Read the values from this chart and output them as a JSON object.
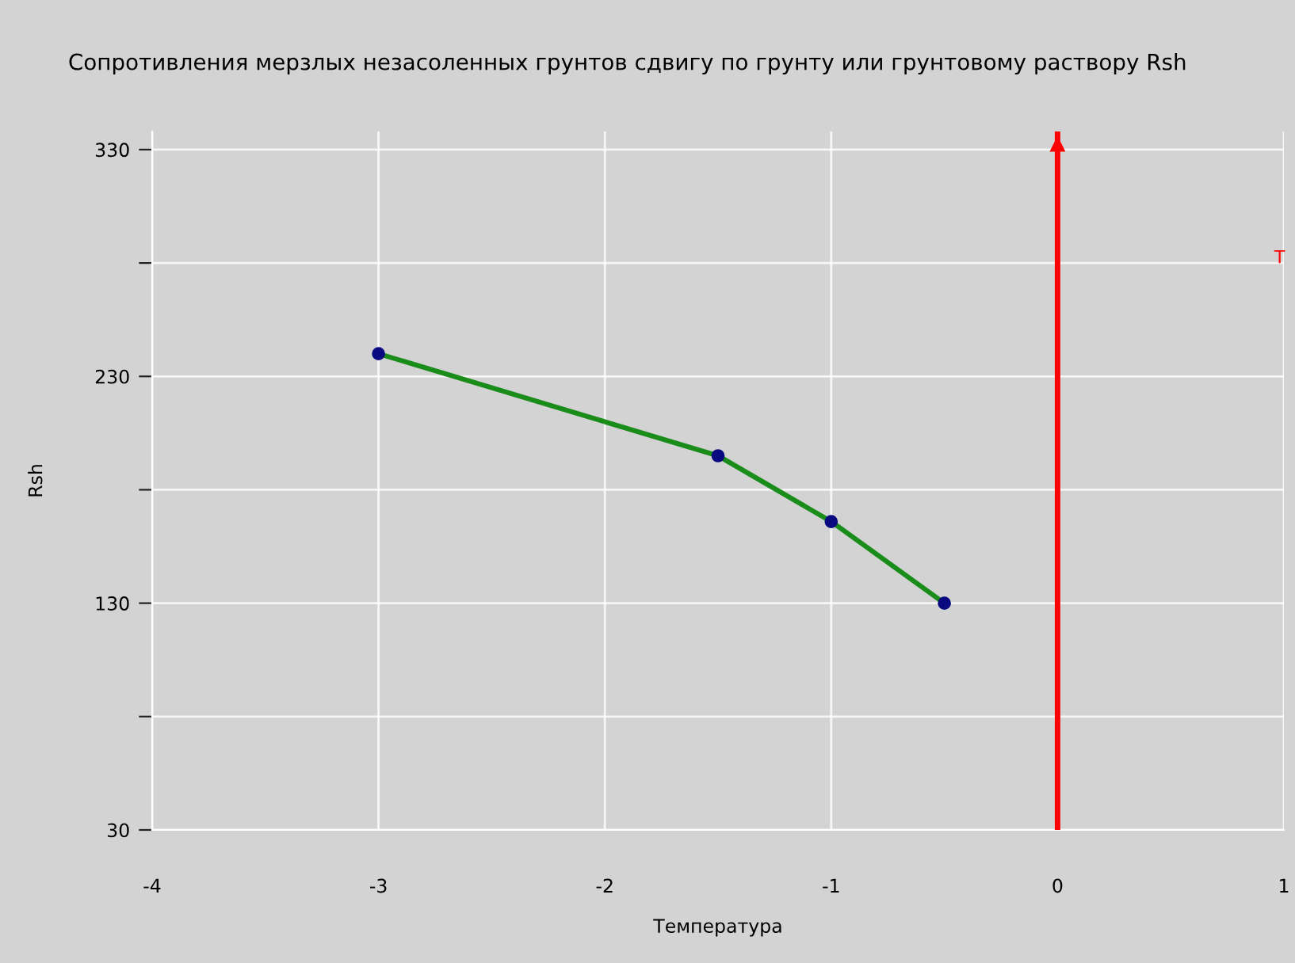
{
  "chart_data": {
    "type": "line",
    "title": "Сопротивления мерзлых незасоленных грунтов сдвигу по грунту или грунтовому раствору Rsh",
    "xlabel": "Температура",
    "ylabel": "Rsh",
    "x": [
      -3,
      -1.5,
      -1,
      -0.5
    ],
    "series": [
      {
        "color": "#1a8c1a",
        "values": [
          240,
          195,
          166,
          130
        ]
      }
    ],
    "marker": "circle",
    "xlim": [
      -4,
      1
    ],
    "xticks": [
      -4,
      -3,
      -2,
      -1,
      0,
      1
    ],
    "ylim": [
      30,
      338
    ],
    "yticks": [
      30,
      {
        "value": 80,
        "label": null
      },
      130,
      {
        "value": 180,
        "label": null
      },
      230,
      {
        "value": 280,
        "label": null
      },
      330
    ],
    "grid": true,
    "ref_lines": [
      {
        "axis": "x",
        "value": 0,
        "color": "#ff0000"
      }
    ],
    "annotations": [
      "T"
    ]
  }
}
